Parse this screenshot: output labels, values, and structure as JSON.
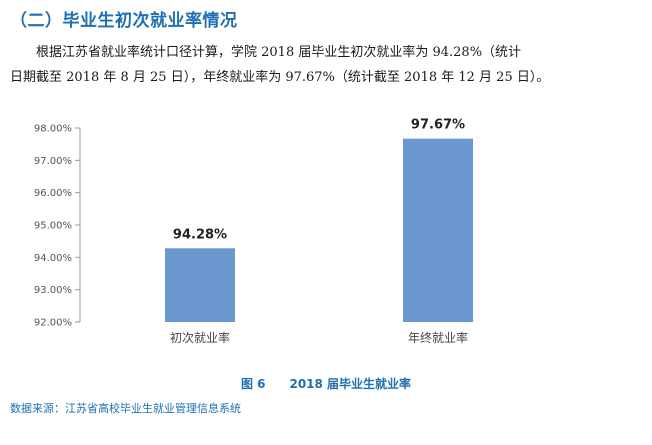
{
  "section_heading": "（二）毕业生初次就业率情况",
  "paragraph": {
    "line1": "根据江苏省就业率统计口径计算，学院 2018 届毕业生初次就业率为 94.28%（统计",
    "line2": "日期截至 2018 年 8 月 25 日），年终就业率为 97.67%（统计截至 2018 年 12 月 25 日）。"
  },
  "chart_data": {
    "type": "bar",
    "categories": [
      "初次就业率",
      "年终就业率"
    ],
    "values": [
      94.28,
      97.67
    ],
    "data_labels": [
      "94.28%",
      "97.67%"
    ],
    "ylim": [
      92,
      98
    ],
    "yticks": [
      "92.00%",
      "93.00%",
      "94.00%",
      "95.00%",
      "96.00%",
      "97.00%",
      "98.00%"
    ],
    "bar_color": "#6a97cf",
    "grid": false
  },
  "caption": "图 6　　2018 届毕业生就业率",
  "source": "数据来源：江苏省高校毕业生就业管理信息系统"
}
